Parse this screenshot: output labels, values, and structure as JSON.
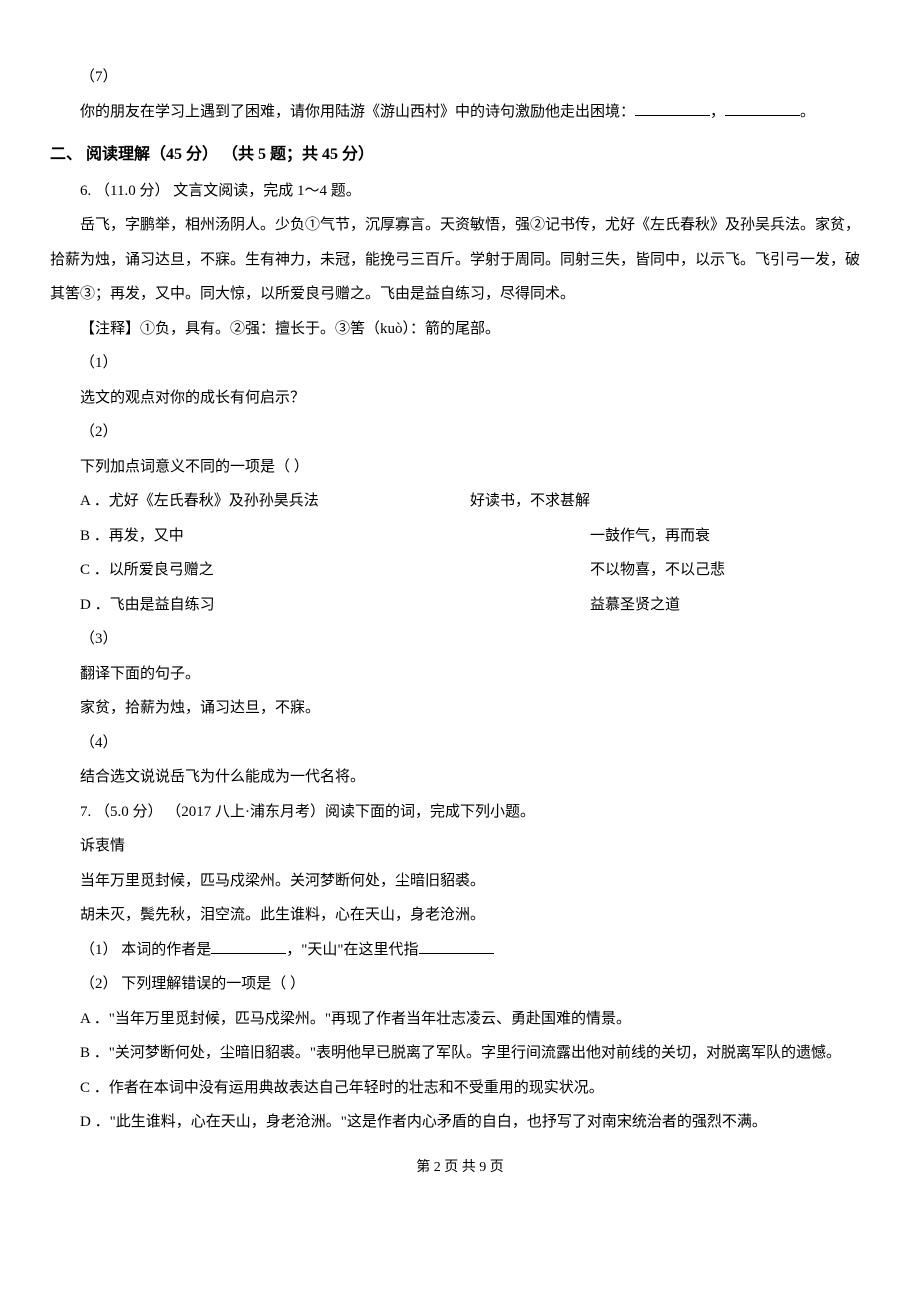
{
  "q5_sub7": {
    "num": "（7）",
    "text": "你的朋友在学习上遇到了困难，请你用陆游《游山西村》中的诗句激励他走出困境：",
    "comma": "，",
    "period": "。"
  },
  "section2": {
    "header": "二、 阅读理解（45 分） （共 5 题；共 45 分）"
  },
  "q6": {
    "start": "6. （11.0 分） 文言文阅读，完成 1～4 题。",
    "passage": "岳飞，字鹏举，相州汤阴人。少负①气节，沉厚寡言。天资敏悟，强②记书传，尤好《左氏春秋》及孙吴兵法。家贫，拾薪为烛，诵习达旦，不寐。生有神力，未冠，能挽弓三百斤。学射于周同。同射三失，皆同中，以示飞。飞引弓一发，破其筈③；再发，又中。同大惊，以所爱良弓赠之。飞由是益自练习，尽得同术。",
    "note": "【注释】①负，具有。②强：擅长于。③筈（kuò）：箭的尾部。",
    "sub1_num": "（1）",
    "sub1_text": "选文的观点对你的成长有何启示？",
    "sub2_num": "（2）",
    "sub2_text": "下列加点词意义不同的一项是（     ）",
    "optA_left": "A ．尤好《左氏春秋》及孙孙昊兵法",
    "optA_right": "好读书，不求甚解",
    "optB_left": "B ．再发，又中",
    "optB_right": "一鼓作气，再而衰",
    "optC_left": "C ．以所爱良弓赠之",
    "optC_right": "不以物喜，不以己悲",
    "optD_left": "D ．飞由是益自练习",
    "optD_right": "益慕圣贤之道",
    "sub3_num": "（3）",
    "sub3_text": "翻译下面的句子。",
    "sub3_sentence": "家贫，拾薪为烛，诵习达旦，不寐。",
    "sub4_num": "（4）",
    "sub4_text": "结合选文说说岳飞为什么能成为一代名将。"
  },
  "q7": {
    "start": "7. （5.0 分） （2017 八上·浦东月考）阅读下面的词，完成下列小题。",
    "title": "诉衷情",
    "line1": "当年万里觅封候，匹马戍梁州。关河梦断何处，尘暗旧貂裘。",
    "line2": "胡未灭，鬓先秋，泪空流。此生谁料，心在天山，身老沧洲。",
    "sub1_prefix": "（1） 本词的作者是",
    "sub1_mid": "，\"天山\"在这里代指",
    "sub2": "（2） 下列理解错误的一项是（     ）",
    "optA": "A ．\"当年万里觅封候，匹马戍梁州。\"再现了作者当年壮志凌云、勇赴国难的情景。",
    "optB": "B ．\"关河梦断何处，尘暗旧貂裘。\"表明他早已脱离了军队。字里行间流露出他对前线的关切，对脱离军队的遗憾。",
    "optC": "C ．作者在本词中没有运用典故表达自己年轻时的壮志和不受重用的现实状况。",
    "optD": "D ．\"此生谁料，心在天山，身老沧洲。\"这是作者内心矛盾的自白，也抒写了对南宋统治者的强烈不满。"
  },
  "footer": "第 2 页 共 9 页"
}
